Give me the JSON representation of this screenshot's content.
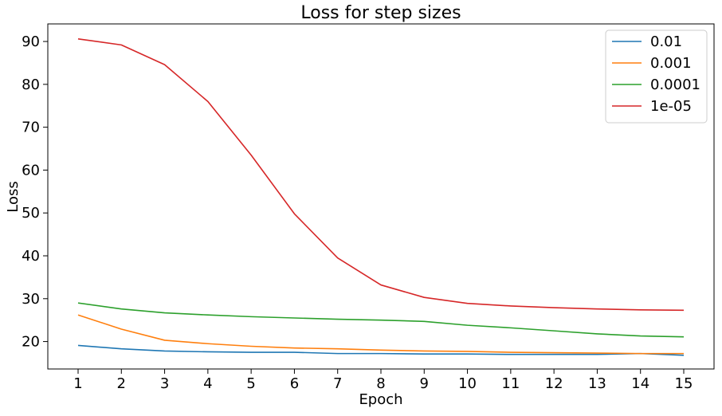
{
  "chart_data": {
    "type": "line",
    "title": "Loss for step sizes",
    "xlabel": "Epoch",
    "ylabel": "Loss",
    "x": [
      1,
      2,
      3,
      4,
      5,
      6,
      7,
      8,
      9,
      10,
      11,
      12,
      13,
      14,
      15
    ],
    "xticks": [
      "1",
      "2",
      "3",
      "4",
      "5",
      "6",
      "7",
      "8",
      "9",
      "10",
      "11",
      "12",
      "13",
      "14",
      "15"
    ],
    "yticks": [
      "20",
      "30",
      "40",
      "50",
      "60",
      "70",
      "80",
      "90"
    ],
    "xlim": [
      0.3,
      15.7
    ],
    "ylim": [
      13.6,
      94.1
    ],
    "grid": false,
    "legend_position": "top-right",
    "series": [
      {
        "name": "0.01",
        "color": "#1f77b4",
        "values": [
          19.1,
          18.3,
          17.8,
          17.6,
          17.5,
          17.5,
          17.2,
          17.2,
          17.1,
          17.1,
          17.0,
          17.0,
          17.0,
          17.2,
          16.8
        ]
      },
      {
        "name": "0.001",
        "color": "#ff7f0e",
        "values": [
          26.2,
          22.9,
          20.3,
          19.5,
          18.9,
          18.5,
          18.3,
          18.0,
          17.8,
          17.7,
          17.5,
          17.4,
          17.3,
          17.2,
          17.2
        ]
      },
      {
        "name": "0.0001",
        "color": "#2ca02c",
        "values": [
          29.0,
          27.6,
          26.7,
          26.2,
          25.8,
          25.5,
          25.2,
          25.0,
          24.7,
          23.8,
          23.2,
          22.5,
          21.8,
          21.3,
          21.1
        ]
      },
      {
        "name": "1e-05",
        "color": "#d62728",
        "values": [
          90.6,
          89.2,
          84.6,
          76.0,
          63.5,
          49.8,
          39.5,
          33.2,
          30.3,
          28.9,
          28.3,
          27.9,
          27.6,
          27.4,
          27.3
        ]
      }
    ]
  }
}
